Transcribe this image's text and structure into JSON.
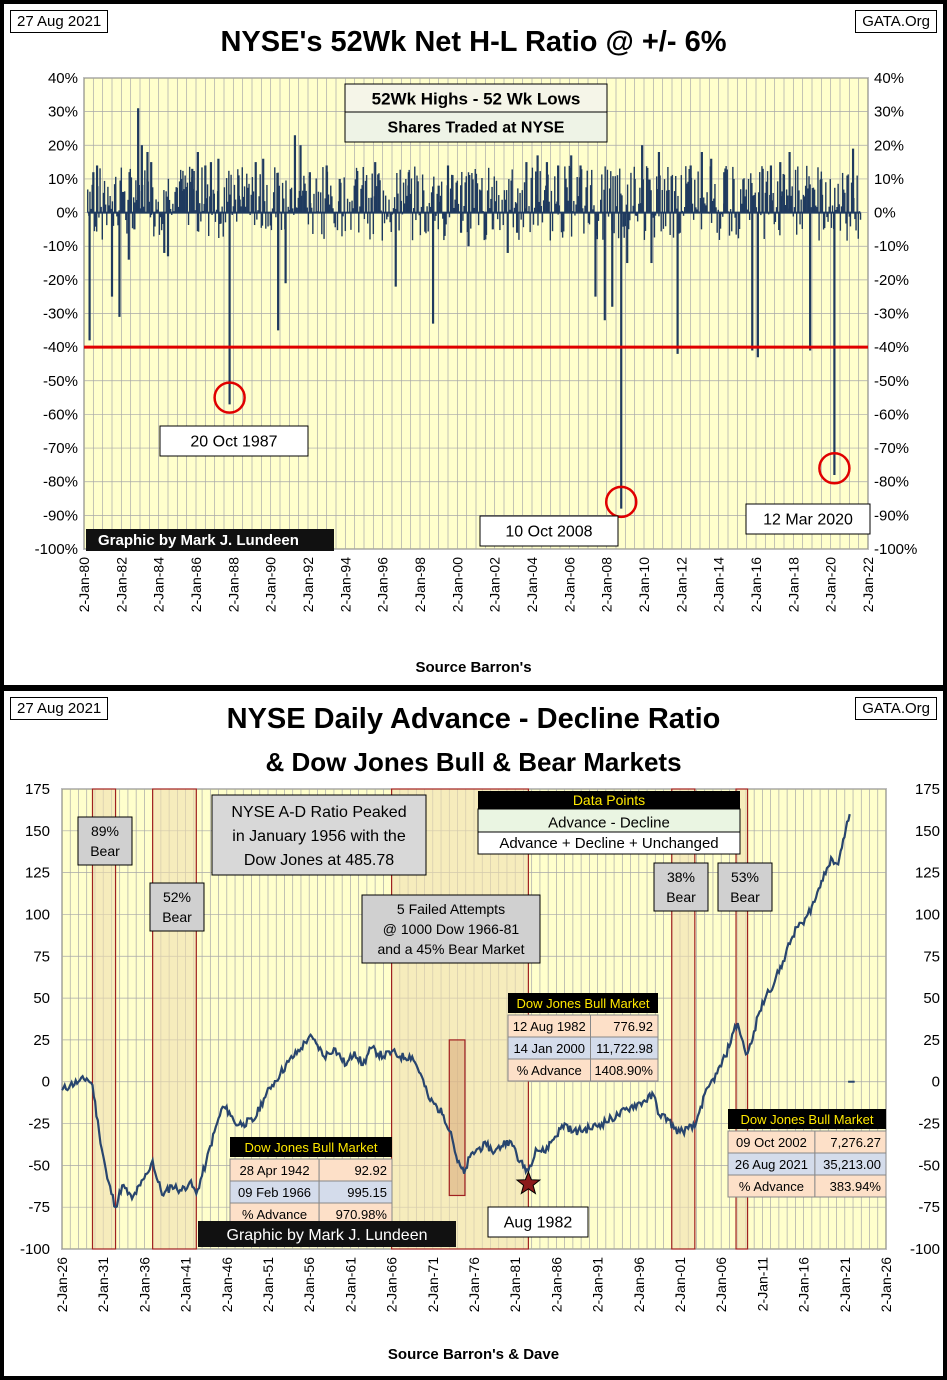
{
  "colors": {
    "plot_bg": "#ffffcc",
    "grid": "#a8a8a8",
    "bar": "#1f3a5f",
    "red": "#e00000",
    "ad_line": "#28456e",
    "band_fill": "#f0e0b0",
    "band_edge": "#a02020",
    "callout_fill": "#d0d0d0"
  },
  "chart_data": [
    {
      "type": "bar",
      "date_label": "27 Aug 2021",
      "source_badge": "GATA.Org",
      "title": "NYSE's 52Wk Net H-L Ratio @ +/- 6%",
      "legend_lines": [
        "52Wk Highs - 52 Wk Lows",
        "Shares Traded at NYSE"
      ],
      "ylim": [
        -100,
        40
      ],
      "y_ticks": [
        "40%",
        "30%",
        "20%",
        "10%",
        "0%",
        "-10%",
        "-20%",
        "-30%",
        "-40%",
        "-50%",
        "-60%",
        "-70%",
        "-80%",
        "-90%",
        "-100%"
      ],
      "x_range": [
        1980,
        2022
      ],
      "x_ticks": [
        "2-Jan-80",
        "2-Jan-82",
        "2-Jan-84",
        "2-Jan-86",
        "2-Jan-88",
        "2-Jan-90",
        "2-Jan-92",
        "2-Jan-94",
        "2-Jan-96",
        "2-Jan-98",
        "2-Jan-00",
        "2-Jan-02",
        "2-Jan-04",
        "2-Jan-06",
        "2-Jan-08",
        "2-Jan-10",
        "2-Jan-12",
        "2-Jan-14",
        "2-Jan-16",
        "2-Jan-18",
        "2-Jan-20",
        "2-Jan-22"
      ],
      "xlabel": "Source Barron's",
      "threshold": -40,
      "credit": "Graphic by Mark J. Lundeen",
      "annotations": [
        {
          "label": "20 Oct 1987",
          "x": 1987.8,
          "y": -55
        },
        {
          "label": "10 Oct 2008",
          "x": 2008.78,
          "y": -86
        },
        {
          "label": "12 Mar 2020",
          "x": 2020.2,
          "y": -76
        }
      ],
      "spikes": [
        [
          1980.3,
          -38
        ],
        [
          1980.5,
          12
        ],
        [
          1980.7,
          14
        ],
        [
          1981.5,
          -25
        ],
        [
          1981.9,
          -31
        ],
        [
          1982.4,
          -14
        ],
        [
          1982.7,
          -5
        ],
        [
          1982.9,
          31
        ],
        [
          1983.1,
          20
        ],
        [
          1983.4,
          18
        ],
        [
          1983.6,
          15
        ],
        [
          1984.3,
          -12
        ],
        [
          1984.5,
          -13
        ],
        [
          1985.2,
          10
        ],
        [
          1985.8,
          13
        ],
        [
          1986.1,
          18
        ],
        [
          1986.5,
          14
        ],
        [
          1986.8,
          15
        ],
        [
          1987.2,
          16
        ],
        [
          1987.8,
          -57
        ],
        [
          1988.3,
          5
        ],
        [
          1989.2,
          15
        ],
        [
          1989.6,
          16
        ],
        [
          1990.4,
          -35
        ],
        [
          1990.8,
          -21
        ],
        [
          1991.3,
          23
        ],
        [
          1991.6,
          20
        ],
        [
          1992.1,
          12
        ],
        [
          1993.0,
          14
        ],
        [
          1993.7,
          10
        ],
        [
          1994.5,
          8
        ],
        [
          1995.6,
          15
        ],
        [
          1996.7,
          -22
        ],
        [
          1997.4,
          12
        ],
        [
          1998.7,
          -33
        ],
        [
          1999.0,
          8
        ],
        [
          1999.5,
          14
        ],
        [
          2000.2,
          -6
        ],
        [
          2000.6,
          -10
        ],
        [
          2001.5,
          -8
        ],
        [
          2001.9,
          -5
        ],
        [
          2002.7,
          -12
        ],
        [
          2003.2,
          -6
        ],
        [
          2003.7,
          15
        ],
        [
          2004.3,
          17
        ],
        [
          2004.8,
          15
        ],
        [
          2005.4,
          14
        ],
        [
          2006.1,
          17
        ],
        [
          2006.6,
          14
        ],
        [
          2007.4,
          -25
        ],
        [
          2007.9,
          -32
        ],
        [
          2008.3,
          -28
        ],
        [
          2008.78,
          -88
        ],
        [
          2009.1,
          -15
        ],
        [
          2009.5,
          10
        ],
        [
          2009.9,
          20
        ],
        [
          2010.4,
          -15
        ],
        [
          2010.8,
          18
        ],
        [
          2011.8,
          -42
        ],
        [
          2012.5,
          14
        ],
        [
          2013.1,
          18
        ],
        [
          2013.6,
          16
        ],
        [
          2014.3,
          12
        ],
        [
          2014.8,
          10
        ],
        [
          2015.8,
          -41
        ],
        [
          2016.1,
          -43
        ],
        [
          2016.8,
          14
        ],
        [
          2017.3,
          15
        ],
        [
          2017.8,
          18
        ],
        [
          2018.9,
          -41
        ],
        [
          2019.5,
          10
        ],
        [
          2020.2,
          -78
        ],
        [
          2020.9,
          11
        ],
        [
          2021.2,
          19
        ]
      ]
    },
    {
      "type": "line",
      "date_label": "27 Aug 2021",
      "source_badge": "GATA.Org",
      "title": "NYSE Daily Advance - Decline Ratio",
      "subtitle": "& Dow Jones Bull & Bear Markets",
      "ylim": [
        -100,
        175
      ],
      "y_ticks": [
        "175",
        "150",
        "125",
        "100",
        "75",
        "50",
        "25",
        "0",
        "-25",
        "-50",
        "-75",
        "-100"
      ],
      "x_range": [
        1926,
        2026
      ],
      "x_ticks": [
        "2-Jan-26",
        "2-Jan-31",
        "2-Jan-36",
        "2-Jan-41",
        "2-Jan-46",
        "2-Jan-51",
        "2-Jan-56",
        "2-Jan-61",
        "2-Jan-66",
        "2-Jan-71",
        "2-Jan-76",
        "2-Jan-81",
        "2-Jan-86",
        "2-Jan-91",
        "2-Jan-96",
        "2-Jan-01",
        "2-Jan-06",
        "2-Jan-11",
        "2-Jan-16",
        "2-Jan-21",
        "2-Jan-26"
      ],
      "xlabel": "Source Barron's & Dave",
      "series": [
        {
          "values": [
            [
              1926.0,
              -5
            ],
            [
              1927.0,
              -2
            ],
            [
              1928.0,
              0
            ],
            [
              1929.0,
              2
            ],
            [
              1929.7,
              -2
            ],
            [
              1930.5,
              -30
            ],
            [
              1931.5,
              -58
            ],
            [
              1932.5,
              -75
            ],
            [
              1933.3,
              -62
            ],
            [
              1934.5,
              -70
            ],
            [
              1935.5,
              -62
            ],
            [
              1936.3,
              -55
            ],
            [
              1937.0,
              -47
            ],
            [
              1937.5,
              -58
            ],
            [
              1938.3,
              -68
            ],
            [
              1939.3,
              -62
            ],
            [
              1940.5,
              -65
            ],
            [
              1941.5,
              -60
            ],
            [
              1942.3,
              -67
            ],
            [
              1943.5,
              -48
            ],
            [
              1944.5,
              -30
            ],
            [
              1945.5,
              -15
            ],
            [
              1946.3,
              -18
            ],
            [
              1947.0,
              -25
            ],
            [
              1948.0,
              -25
            ],
            [
              1949.3,
              -23
            ],
            [
              1950.5,
              -10
            ],
            [
              1951.5,
              -2
            ],
            [
              1952.5,
              5
            ],
            [
              1953.5,
              12
            ],
            [
              1955.0,
              20
            ],
            [
              1956.0,
              27
            ],
            [
              1957.0,
              22
            ],
            [
              1957.8,
              15
            ],
            [
              1959.0,
              20
            ],
            [
              1960.5,
              10
            ],
            [
              1961.5,
              18
            ],
            [
              1962.5,
              10
            ],
            [
              1963.5,
              20
            ],
            [
              1965.0,
              15
            ],
            [
              1966.0,
              18
            ],
            [
              1967.0,
              15
            ],
            [
              1968.5,
              15
            ],
            [
              1969.5,
              5
            ],
            [
              1970.5,
              -10
            ],
            [
              1971.5,
              -15
            ],
            [
              1972.3,
              -20
            ],
            [
              1973.2,
              -30
            ],
            [
              1974.0,
              -48
            ],
            [
              1974.8,
              -55
            ],
            [
              1975.5,
              -45
            ],
            [
              1976.5,
              -40
            ],
            [
              1977.5,
              -38
            ],
            [
              1978.5,
              -42
            ],
            [
              1980.0,
              -35
            ],
            [
              1981.0,
              -40
            ],
            [
              1981.5,
              -48
            ],
            [
              1982.6,
              -53
            ],
            [
              1983.5,
              -40
            ],
            [
              1984.5,
              -42
            ],
            [
              1985.5,
              -35
            ],
            [
              1987.0,
              -25
            ],
            [
              1988.0,
              -30
            ],
            [
              1990.0,
              -28
            ],
            [
              1991.5,
              -25
            ],
            [
              1993.5,
              -20
            ],
            [
              1995.0,
              -15
            ],
            [
              1996.5,
              -12
            ],
            [
              1997.8,
              -8
            ],
            [
              1998.5,
              -20
            ],
            [
              1999.5,
              -22
            ],
            [
              2000.3,
              -28
            ],
            [
              2001.0,
              -30
            ],
            [
              2002.0,
              -28
            ],
            [
              2002.8,
              -27
            ],
            [
              2003.5,
              -15
            ],
            [
              2004.5,
              -3
            ],
            [
              2005.5,
              5
            ],
            [
              2006.5,
              15
            ],
            [
              2007.5,
              30
            ],
            [
              2008.0,
              35
            ],
            [
              2008.8,
              20
            ],
            [
              2009.2,
              17
            ],
            [
              2009.8,
              25
            ],
            [
              2010.5,
              40
            ],
            [
              2011.5,
              52
            ],
            [
              2012.5,
              60
            ],
            [
              2013.5,
              72
            ],
            [
              2014.5,
              85
            ],
            [
              2015.5,
              95
            ],
            [
              2016.0,
              94
            ],
            [
              2016.5,
              100
            ],
            [
              2017.5,
              110
            ],
            [
              2018.5,
              125
            ],
            [
              2019.5,
              133
            ],
            [
              2020.2,
              130
            ],
            [
              2020.8,
              145
            ],
            [
              2021.6,
              160
            ]
          ]
        }
      ],
      "bands": [
        {
          "start": 1929.7,
          "end": 1932.5,
          "label": [
            "89%",
            "Bear"
          ]
        },
        {
          "start": 1937.0,
          "end": 1942.3,
          "label": [
            "52%",
            "Bear"
          ]
        },
        {
          "start": 1966.0,
          "end": 1982.6,
          "label": []
        },
        {
          "start": 2000.0,
          "end": 2002.8,
          "label": [
            "38%",
            "Bear"
          ]
        },
        {
          "start": 2007.8,
          "end": 2009.2,
          "label": [
            "53%",
            "Bear"
          ]
        }
      ],
      "bear_1973": {
        "start": 1973.0,
        "end": 1974.9,
        "top": 25,
        "bottom": -68
      },
      "peak_note": [
        "NYSE A-D Ratio Peaked",
        "in January 1956 with the",
        "Dow Jones at 485.78"
      ],
      "failed_note": [
        "5 Failed Attempts",
        "@ 1000  Dow 1966-81",
        "and a 45% Bear Market"
      ],
      "data_points": {
        "heading": "Data Points",
        "line1": "Advance - Decline",
        "line2": "Advance + Decline + Unchanged"
      },
      "bull_markets": [
        {
          "heading": "Dow Jones Bull Market",
          "rows": [
            [
              "28 Apr 1942",
              "92.92"
            ],
            [
              "09 Feb 1966",
              "995.15"
            ],
            [
              "% Advance",
              "970.98%"
            ]
          ]
        },
        {
          "heading": "Dow Jones Bull Market",
          "rows": [
            [
              "12 Aug 1982",
              "776.92"
            ],
            [
              "14 Jan 2000",
              "11,722.98"
            ],
            [
              "% Advance",
              "1408.90%"
            ]
          ]
        },
        {
          "heading": "Dow Jones Bull Market",
          "rows": [
            [
              "09 Oct 2002",
              "7,276.27"
            ],
            [
              "26 Aug 2021",
              "35,213.00"
            ],
            [
              "% Advance",
              "383.94%"
            ]
          ]
        }
      ],
      "star_label": "Aug 1982",
      "star": {
        "x": 1982.6,
        "y": -61
      },
      "credit": "Graphic by Mark J. Lundeen"
    }
  ]
}
